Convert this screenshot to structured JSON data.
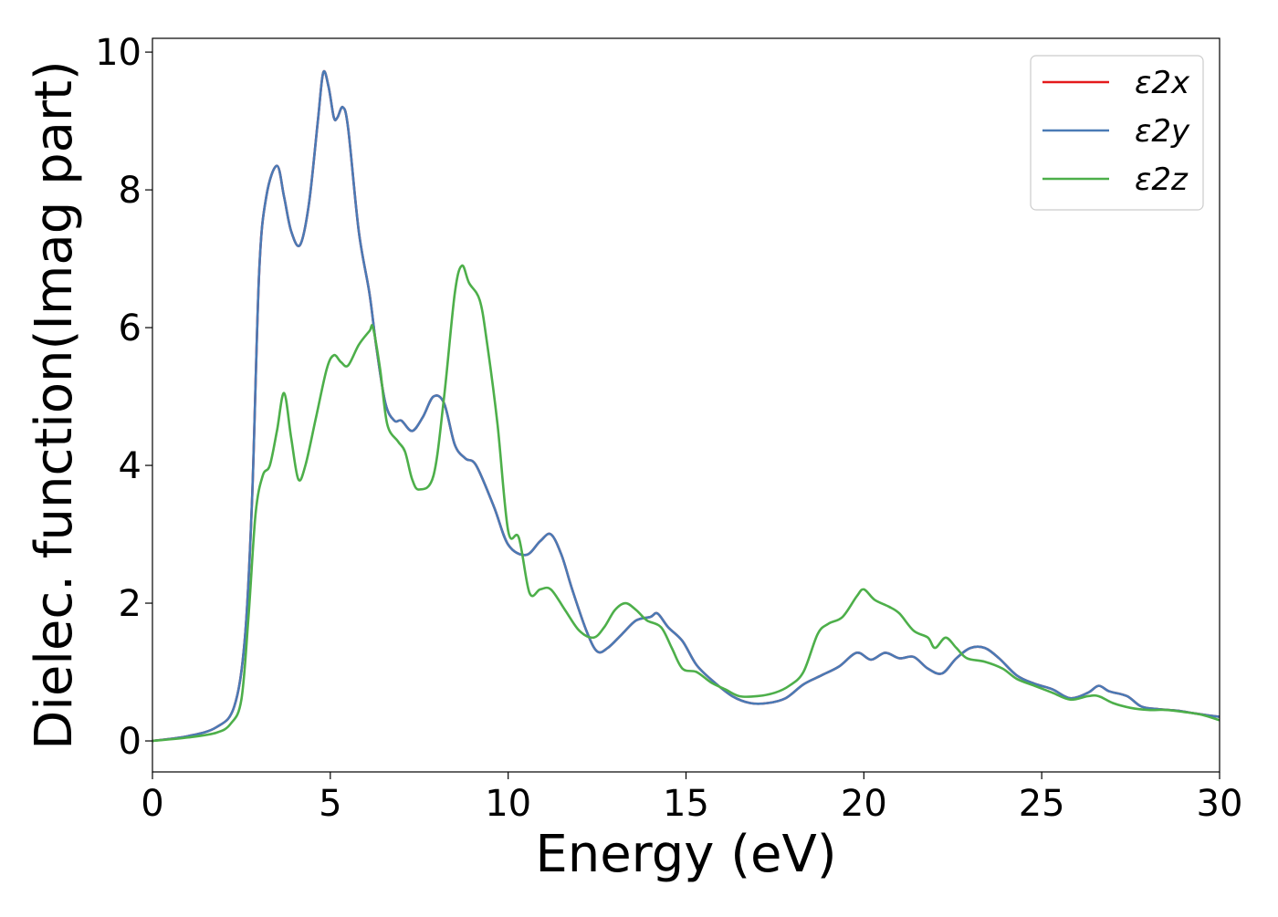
{
  "chart_data": {
    "type": "line",
    "title": "",
    "xlabel": "Energy (eV)",
    "ylabel": "Dielec. function(Imag part)",
    "xlim": [
      0,
      30
    ],
    "ylim": [
      -0.45,
      10.2
    ],
    "x_ticks": [
      0,
      5,
      10,
      15,
      20,
      25,
      30
    ],
    "x_tick_labels": [
      "0",
      "5",
      "10",
      "15",
      "20",
      "25",
      "30"
    ],
    "y_ticks": [
      0,
      2,
      4,
      6,
      8,
      10
    ],
    "y_tick_labels": [
      "0",
      "2",
      "4",
      "6",
      "8",
      "10"
    ],
    "grid": false,
    "legend_position": "top-right",
    "series": [
      {
        "name": "ε2x",
        "color": "#e41a1c",
        "points": [
          [
            0,
            0
          ],
          [
            1,
            0.07
          ],
          [
            1.8,
            0.2
          ],
          [
            2.3,
            0.5
          ],
          [
            2.6,
            1.5
          ],
          [
            2.8,
            3.5
          ],
          [
            3.0,
            6.8
          ],
          [
            3.2,
            7.9
          ],
          [
            3.5,
            8.35
          ],
          [
            3.7,
            7.9
          ],
          [
            3.9,
            7.4
          ],
          [
            4.15,
            7.2
          ],
          [
            4.4,
            7.8
          ],
          [
            4.65,
            9.0
          ],
          [
            4.8,
            9.7
          ],
          [
            4.95,
            9.5
          ],
          [
            5.1,
            9.05
          ],
          [
            5.2,
            9.05
          ],
          [
            5.35,
            9.2
          ],
          [
            5.5,
            8.9
          ],
          [
            5.8,
            7.4
          ],
          [
            6.1,
            6.5
          ],
          [
            6.3,
            5.7
          ],
          [
            6.55,
            4.9
          ],
          [
            6.8,
            4.65
          ],
          [
            7.0,
            4.65
          ],
          [
            7.3,
            4.5
          ],
          [
            7.6,
            4.7
          ],
          [
            7.9,
            5.0
          ],
          [
            8.2,
            4.9
          ],
          [
            8.5,
            4.3
          ],
          [
            8.8,
            4.1
          ],
          [
            9.1,
            4.0
          ],
          [
            9.6,
            3.4
          ],
          [
            10.0,
            2.85
          ],
          [
            10.5,
            2.7
          ],
          [
            10.9,
            2.9
          ],
          [
            11.2,
            3.0
          ],
          [
            11.5,
            2.7
          ],
          [
            11.8,
            2.2
          ],
          [
            12.2,
            1.6
          ],
          [
            12.5,
            1.3
          ],
          [
            12.8,
            1.35
          ],
          [
            13.2,
            1.55
          ],
          [
            13.6,
            1.75
          ],
          [
            14.0,
            1.8
          ],
          [
            14.2,
            1.85
          ],
          [
            14.5,
            1.65
          ],
          [
            14.9,
            1.45
          ],
          [
            15.3,
            1.1
          ],
          [
            15.8,
            0.85
          ],
          [
            16.3,
            0.65
          ],
          [
            16.8,
            0.55
          ],
          [
            17.3,
            0.55
          ],
          [
            17.8,
            0.62
          ],
          [
            18.3,
            0.82
          ],
          [
            18.8,
            0.95
          ],
          [
            19.3,
            1.08
          ],
          [
            19.8,
            1.28
          ],
          [
            20.2,
            1.18
          ],
          [
            20.6,
            1.28
          ],
          [
            21.0,
            1.2
          ],
          [
            21.4,
            1.22
          ],
          [
            21.8,
            1.05
          ],
          [
            22.2,
            0.98
          ],
          [
            22.6,
            1.2
          ],
          [
            23.0,
            1.35
          ],
          [
            23.4,
            1.35
          ],
          [
            23.8,
            1.2
          ],
          [
            24.3,
            0.95
          ],
          [
            24.8,
            0.83
          ],
          [
            25.3,
            0.75
          ],
          [
            25.8,
            0.62
          ],
          [
            26.3,
            0.7
          ],
          [
            26.6,
            0.8
          ],
          [
            26.9,
            0.72
          ],
          [
            27.4,
            0.65
          ],
          [
            27.8,
            0.5
          ],
          [
            28.3,
            0.46
          ],
          [
            28.8,
            0.44
          ],
          [
            29.3,
            0.4
          ],
          [
            29.7,
            0.37
          ],
          [
            30.0,
            0.35
          ]
        ]
      },
      {
        "name": "ε2y",
        "color": "#4a7ab5",
        "points": [
          [
            0,
            0
          ],
          [
            1,
            0.07
          ],
          [
            1.8,
            0.2
          ],
          [
            2.3,
            0.5
          ],
          [
            2.6,
            1.5
          ],
          [
            2.8,
            3.5
          ],
          [
            3.0,
            6.8
          ],
          [
            3.2,
            7.9
          ],
          [
            3.5,
            8.35
          ],
          [
            3.7,
            7.9
          ],
          [
            3.9,
            7.4
          ],
          [
            4.15,
            7.2
          ],
          [
            4.4,
            7.8
          ],
          [
            4.65,
            9.0
          ],
          [
            4.8,
            9.7
          ],
          [
            4.95,
            9.5
          ],
          [
            5.1,
            9.05
          ],
          [
            5.2,
            9.05
          ],
          [
            5.35,
            9.2
          ],
          [
            5.5,
            8.9
          ],
          [
            5.8,
            7.4
          ],
          [
            6.1,
            6.5
          ],
          [
            6.3,
            5.7
          ],
          [
            6.55,
            4.9
          ],
          [
            6.8,
            4.65
          ],
          [
            7.0,
            4.65
          ],
          [
            7.3,
            4.5
          ],
          [
            7.6,
            4.7
          ],
          [
            7.9,
            5.0
          ],
          [
            8.2,
            4.9
          ],
          [
            8.5,
            4.3
          ],
          [
            8.8,
            4.1
          ],
          [
            9.1,
            4.0
          ],
          [
            9.6,
            3.4
          ],
          [
            10.0,
            2.85
          ],
          [
            10.5,
            2.7
          ],
          [
            10.9,
            2.9
          ],
          [
            11.2,
            3.0
          ],
          [
            11.5,
            2.7
          ],
          [
            11.8,
            2.2
          ],
          [
            12.2,
            1.6
          ],
          [
            12.5,
            1.3
          ],
          [
            12.8,
            1.35
          ],
          [
            13.2,
            1.55
          ],
          [
            13.6,
            1.75
          ],
          [
            14.0,
            1.8
          ],
          [
            14.2,
            1.85
          ],
          [
            14.5,
            1.65
          ],
          [
            14.9,
            1.45
          ],
          [
            15.3,
            1.1
          ],
          [
            15.8,
            0.85
          ],
          [
            16.3,
            0.65
          ],
          [
            16.8,
            0.55
          ],
          [
            17.3,
            0.55
          ],
          [
            17.8,
            0.62
          ],
          [
            18.3,
            0.82
          ],
          [
            18.8,
            0.95
          ],
          [
            19.3,
            1.08
          ],
          [
            19.8,
            1.28
          ],
          [
            20.2,
            1.18
          ],
          [
            20.6,
            1.28
          ],
          [
            21.0,
            1.2
          ],
          [
            21.4,
            1.22
          ],
          [
            21.8,
            1.05
          ],
          [
            22.2,
            0.98
          ],
          [
            22.6,
            1.2
          ],
          [
            23.0,
            1.35
          ],
          [
            23.4,
            1.35
          ],
          [
            23.8,
            1.2
          ],
          [
            24.3,
            0.95
          ],
          [
            24.8,
            0.83
          ],
          [
            25.3,
            0.75
          ],
          [
            25.8,
            0.62
          ],
          [
            26.3,
            0.7
          ],
          [
            26.6,
            0.8
          ],
          [
            26.9,
            0.72
          ],
          [
            27.4,
            0.65
          ],
          [
            27.8,
            0.5
          ],
          [
            28.3,
            0.46
          ],
          [
            28.8,
            0.44
          ],
          [
            29.3,
            0.4
          ],
          [
            29.7,
            0.37
          ],
          [
            30.0,
            0.35
          ]
        ]
      },
      {
        "name": "ε2z",
        "color": "#4daf4a",
        "points": [
          [
            0,
            0
          ],
          [
            1,
            0.05
          ],
          [
            1.8,
            0.12
          ],
          [
            2.2,
            0.25
          ],
          [
            2.5,
            0.6
          ],
          [
            2.7,
            1.8
          ],
          [
            2.9,
            3.3
          ],
          [
            3.1,
            3.85
          ],
          [
            3.3,
            4.0
          ],
          [
            3.5,
            4.5
          ],
          [
            3.7,
            5.05
          ],
          [
            3.9,
            4.4
          ],
          [
            4.1,
            3.8
          ],
          [
            4.3,
            4.0
          ],
          [
            4.6,
            4.7
          ],
          [
            4.9,
            5.4
          ],
          [
            5.1,
            5.6
          ],
          [
            5.3,
            5.5
          ],
          [
            5.5,
            5.45
          ],
          [
            5.8,
            5.75
          ],
          [
            6.1,
            5.95
          ],
          [
            6.2,
            6.0
          ],
          [
            6.4,
            5.4
          ],
          [
            6.6,
            4.6
          ],
          [
            6.9,
            4.35
          ],
          [
            7.1,
            4.2
          ],
          [
            7.3,
            3.8
          ],
          [
            7.5,
            3.65
          ],
          [
            7.9,
            3.85
          ],
          [
            8.2,
            5.0
          ],
          [
            8.5,
            6.5
          ],
          [
            8.7,
            6.9
          ],
          [
            8.9,
            6.65
          ],
          [
            9.2,
            6.4
          ],
          [
            9.4,
            5.8
          ],
          [
            9.7,
            4.6
          ],
          [
            10.0,
            3.05
          ],
          [
            10.3,
            2.95
          ],
          [
            10.6,
            2.15
          ],
          [
            10.9,
            2.2
          ],
          [
            11.2,
            2.2
          ],
          [
            11.6,
            1.9
          ],
          [
            12.0,
            1.6
          ],
          [
            12.4,
            1.5
          ],
          [
            12.7,
            1.65
          ],
          [
            13.0,
            1.9
          ],
          [
            13.3,
            2.0
          ],
          [
            13.6,
            1.9
          ],
          [
            13.9,
            1.75
          ],
          [
            14.3,
            1.65
          ],
          [
            14.6,
            1.35
          ],
          [
            14.9,
            1.05
          ],
          [
            15.3,
            1.0
          ],
          [
            15.7,
            0.85
          ],
          [
            16.1,
            0.75
          ],
          [
            16.5,
            0.65
          ],
          [
            17.0,
            0.65
          ],
          [
            17.5,
            0.7
          ],
          [
            17.9,
            0.8
          ],
          [
            18.3,
            1.0
          ],
          [
            18.7,
            1.55
          ],
          [
            19.0,
            1.7
          ],
          [
            19.4,
            1.8
          ],
          [
            19.8,
            2.1
          ],
          [
            20.0,
            2.2
          ],
          [
            20.3,
            2.05
          ],
          [
            20.7,
            1.95
          ],
          [
            21.0,
            1.85
          ],
          [
            21.4,
            1.6
          ],
          [
            21.8,
            1.5
          ],
          [
            22.0,
            1.35
          ],
          [
            22.3,
            1.5
          ],
          [
            22.6,
            1.35
          ],
          [
            22.9,
            1.2
          ],
          [
            23.4,
            1.15
          ],
          [
            23.9,
            1.05
          ],
          [
            24.3,
            0.9
          ],
          [
            24.8,
            0.8
          ],
          [
            25.3,
            0.7
          ],
          [
            25.8,
            0.6
          ],
          [
            26.3,
            0.65
          ],
          [
            26.6,
            0.65
          ],
          [
            27.0,
            0.55
          ],
          [
            27.5,
            0.48
          ],
          [
            28.0,
            0.45
          ],
          [
            28.5,
            0.45
          ],
          [
            29.0,
            0.42
          ],
          [
            29.5,
            0.38
          ],
          [
            30.0,
            0.3
          ]
        ]
      }
    ]
  }
}
